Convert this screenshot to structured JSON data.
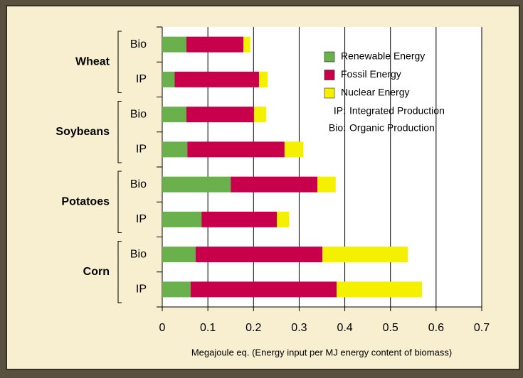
{
  "chart_data": {
    "type": "stacked-bar-horizontal",
    "groups": [
      "Wheat",
      "Soybeans",
      "Potatoes",
      "Corn"
    ],
    "categories": [
      "Bio",
      "IP",
      "Bio",
      "IP",
      "Bio",
      "IP",
      "Bio",
      "IP"
    ],
    "series": [
      {
        "name": "Renewable Energy",
        "color": "#6ab04c",
        "values": [
          0.053,
          0.027,
          0.053,
          0.055,
          0.15,
          0.086,
          0.073,
          0.062
        ]
      },
      {
        "name": "Fossil Energy",
        "color": "#c8004b",
        "values": [
          0.125,
          0.185,
          0.148,
          0.213,
          0.19,
          0.165,
          0.278,
          0.32
        ]
      },
      {
        "name": "Nuclear Energy",
        "color": "#f5ef00",
        "values": [
          0.015,
          0.019,
          0.027,
          0.041,
          0.04,
          0.027,
          0.187,
          0.187
        ]
      }
    ],
    "notes": [
      {
        "key": "IP:",
        "text": "Integrated Production"
      },
      {
        "key": "Bio:",
        "text": "Organic Production"
      }
    ],
    "xlim": [
      0,
      0.7
    ],
    "xticks": [
      0,
      0.1,
      0.2,
      0.3,
      0.4,
      0.5,
      0.6,
      0.7
    ],
    "xlabel": "Megajoule eq. (Energy input per MJ energy content of biomass)",
    "grid": true
  }
}
